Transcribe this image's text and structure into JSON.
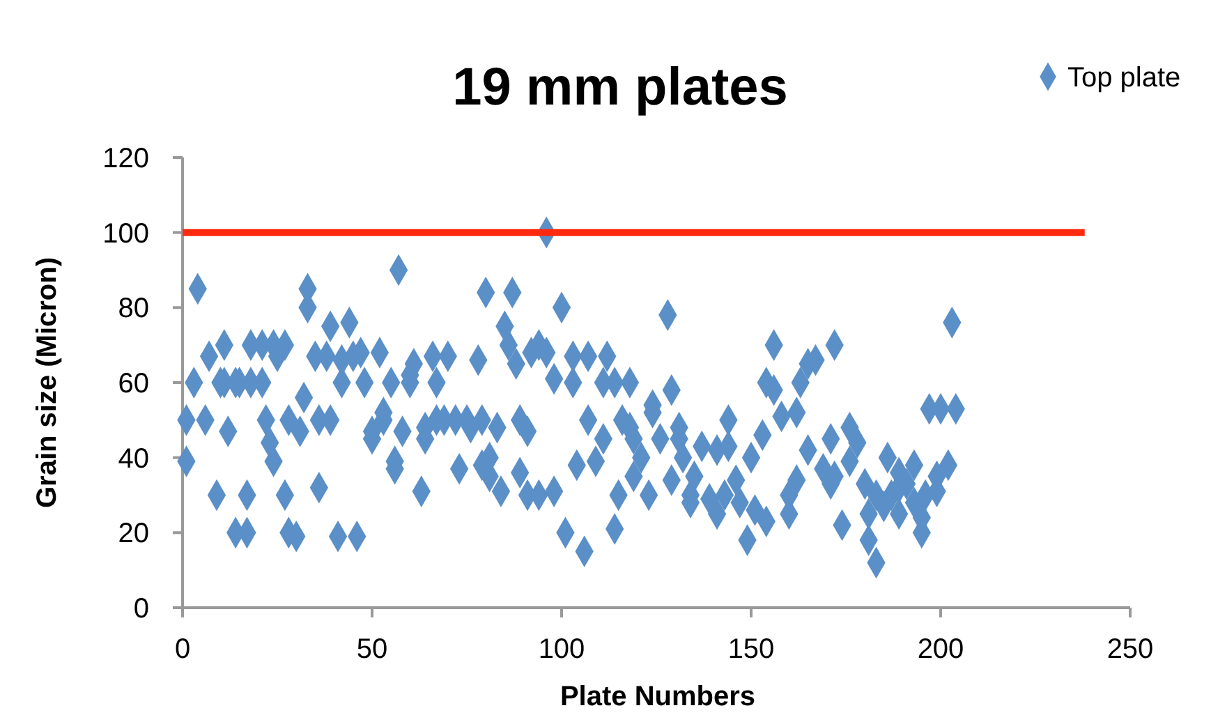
{
  "chart_data": {
    "type": "scatter",
    "title": "19 mm plates",
    "xlabel": "Plate Numbers",
    "ylabel": "Grain size (Micron)",
    "xlim": [
      0,
      250
    ],
    "ylim": [
      0,
      120
    ],
    "xticks": [
      0,
      50,
      100,
      150,
      200,
      250
    ],
    "yticks": [
      0,
      20,
      40,
      60,
      80,
      100,
      120
    ],
    "grid": false,
    "legend": "top right",
    "marker": "diamond",
    "series": [
      {
        "name": "Top plate",
        "color": "#5b8fc7",
        "x": [
          1,
          1,
          3,
          4,
          6,
          7,
          9,
          10,
          11,
          11,
          12,
          14,
          14,
          15,
          17,
          17,
          18,
          18,
          21,
          21,
          22,
          23,
          24,
          24,
          25,
          27,
          27,
          28,
          28,
          30,
          31,
          32,
          33,
          33,
          35,
          36,
          36,
          38,
          39,
          39,
          41,
          42,
          42,
          44,
          45,
          46,
          47,
          48,
          50,
          50,
          52,
          53,
          53,
          55,
          56,
          56,
          57,
          58,
          60,
          60,
          61,
          63,
          64,
          64,
          66,
          67,
          67,
          69,
          70,
          72,
          73,
          75,
          76,
          78,
          79,
          79,
          80,
          81,
          81,
          83,
          84,
          85,
          86,
          87,
          88,
          89,
          89,
          91,
          91,
          92,
          94,
          94,
          96,
          96,
          98,
          98,
          100,
          101,
          103,
          103,
          104,
          106,
          107,
          107,
          109,
          111,
          111,
          112,
          114,
          114,
          115,
          116,
          118,
          118,
          119,
          119,
          121,
          123,
          124,
          124,
          126,
          128,
          129,
          129,
          131,
          131,
          132,
          134,
          134,
          135,
          137,
          139,
          141,
          141,
          143,
          144,
          144,
          146,
          147,
          149,
          150,
          151,
          153,
          154,
          154,
          156,
          156,
          158,
          160,
          160,
          162,
          162,
          163,
          165,
          165,
          167,
          169,
          171,
          171,
          172,
          172,
          174,
          176,
          176,
          178,
          180,
          181,
          181,
          183,
          183,
          185,
          186,
          187,
          189,
          189,
          189,
          191,
          193,
          193,
          195,
          195,
          196,
          197,
          199,
          199,
          200,
          202,
          203,
          204
        ],
        "values": [
          50,
          39,
          60,
          85,
          50,
          67,
          30,
          60,
          70,
          60,
          47,
          20,
          60,
          60,
          20,
          30,
          70,
          60,
          60,
          70,
          50,
          44,
          70,
          39,
          67,
          70,
          30,
          50,
          20,
          19,
          47,
          56,
          85,
          80,
          67,
          50,
          32,
          67,
          75,
          50,
          19,
          66,
          60,
          76,
          67,
          19,
          68,
          60,
          47,
          45,
          68,
          52,
          50,
          60,
          37,
          39,
          90,
          47,
          60,
          62,
          65,
          31,
          45,
          48,
          67,
          60,
          50,
          50,
          67,
          50,
          37,
          50,
          48,
          66,
          38,
          50,
          84,
          40,
          35,
          48,
          31,
          75,
          70,
          84,
          65,
          36,
          50,
          30,
          47,
          68,
          70,
          30,
          100,
          68,
          61,
          31,
          80,
          20,
          67,
          60,
          38,
          15,
          67,
          50,
          39,
          60,
          45,
          67,
          21,
          60,
          30,
          50,
          48,
          60,
          45,
          35,
          40,
          30,
          54,
          52,
          45,
          78,
          58,
          34,
          48,
          45,
          40,
          30,
          28,
          35,
          43,
          29,
          42,
          25,
          30,
          50,
          43,
          34,
          28,
          18,
          40,
          26,
          46,
          60,
          23,
          70,
          58,
          51,
          30,
          25,
          34,
          52,
          60,
          42,
          65,
          66,
          37,
          45,
          33,
          35,
          70,
          22,
          48,
          39,
          44,
          33,
          25,
          18,
          30,
          12,
          27,
          40,
          30,
          25,
          36,
          32,
          33,
          38,
          28,
          20,
          24,
          30,
          53,
          31,
          35,
          53,
          38,
          76,
          53
        ]
      },
      {
        "type": "line",
        "color": "#ff2a0f",
        "x": [
          0,
          238
        ],
        "values": [
          100,
          100
        ],
        "marker": "none"
      }
    ]
  }
}
